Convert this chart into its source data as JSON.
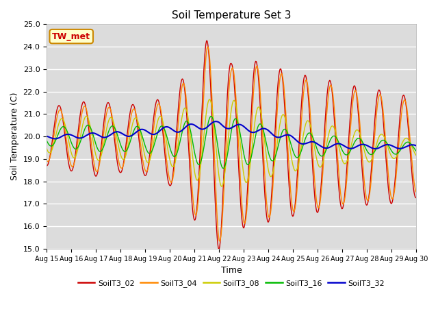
{
  "title": "Soil Temperature Set 3",
  "xlabel": "Time",
  "ylabel": "Soil Temperature (C)",
  "ylim": [
    15.0,
    25.0
  ],
  "yticks": [
    15.0,
    16.0,
    17.0,
    18.0,
    19.0,
    20.0,
    21.0,
    22.0,
    23.0,
    24.0,
    25.0
  ],
  "xtick_labels": [
    "Aug 15",
    "Aug 16",
    "Aug 17",
    "Aug 18",
    "Aug 19",
    "Aug 20",
    "Aug 21",
    "Aug 22",
    "Aug 23",
    "Aug 24",
    "Aug 25",
    "Aug 26",
    "Aug 27",
    "Aug 28",
    "Aug 29",
    "Aug 30"
  ],
  "colors": {
    "SoilT3_02": "#cc0000",
    "SoilT3_04": "#ff8800",
    "SoilT3_08": "#cccc00",
    "SoilT3_16": "#00bb00",
    "SoilT3_32": "#0000cc"
  },
  "bg_color": "#dcdcdc",
  "grid_color": "#ffffff",
  "annotation_text": "TW_met",
  "annotation_fg": "#cc0000",
  "annotation_bg": "#ffffcc",
  "annotation_border": "#cc8800"
}
